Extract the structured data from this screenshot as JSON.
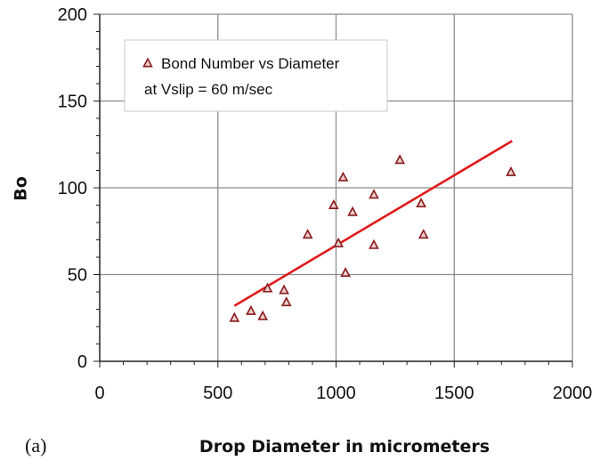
{
  "chart_data": {
    "type": "scatter",
    "title": "",
    "panel_label": "(a)",
    "xlabel": "Drop Diameter in micrometers",
    "ylabel": "Bo",
    "xlim": [
      0,
      2000
    ],
    "ylim": [
      0,
      200
    ],
    "xticks": [
      0,
      500,
      1000,
      1500,
      2000
    ],
    "yticks": [
      0,
      50,
      100,
      150,
      200
    ],
    "x_minor_step": 100,
    "y_minor_step": 10,
    "grid": true,
    "legend": {
      "placement": "top-left",
      "line1": "Bond Number vs Diameter",
      "line2": "at Vslip = 60 m/sec"
    },
    "series": [
      {
        "name": "Bond Number vs Diameter at Vslip = 60 m/sec",
        "marker": "triangle",
        "color": "#8b1a1a",
        "points": [
          {
            "x": 570,
            "y": 25
          },
          {
            "x": 640,
            "y": 29
          },
          {
            "x": 690,
            "y": 26
          },
          {
            "x": 710,
            "y": 42
          },
          {
            "x": 780,
            "y": 41
          },
          {
            "x": 790,
            "y": 34
          },
          {
            "x": 880,
            "y": 73
          },
          {
            "x": 990,
            "y": 90
          },
          {
            "x": 1010,
            "y": 68
          },
          {
            "x": 1030,
            "y": 106
          },
          {
            "x": 1040,
            "y": 51
          },
          {
            "x": 1070,
            "y": 86
          },
          {
            "x": 1160,
            "y": 96
          },
          {
            "x": 1160,
            "y": 67
          },
          {
            "x": 1270,
            "y": 116
          },
          {
            "x": 1360,
            "y": 91
          },
          {
            "x": 1370,
            "y": 73
          },
          {
            "x": 1740,
            "y": 109
          }
        ]
      }
    ],
    "trendline": {
      "color": "#e01b1b",
      "x": [
        570,
        1745
      ],
      "y": [
        32,
        127
      ]
    }
  }
}
